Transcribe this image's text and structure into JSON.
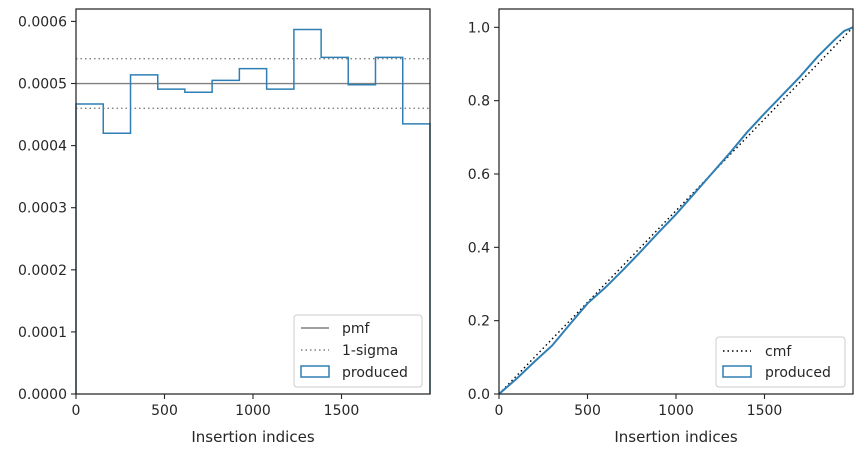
{
  "colors": {
    "step": "#2f7fb4",
    "pmf": "#808080",
    "sigma": "#808080",
    "cmf": "#000000",
    "axes": "#262626"
  },
  "chart_data": [
    {
      "type": "step-histogram",
      "xlabel": "Insertion indices",
      "ylabel": "",
      "xlim": [
        0,
        2000
      ],
      "ylim": [
        0,
        0.00062
      ],
      "xticks": [
        0,
        500,
        1000,
        1500
      ],
      "xtick_labels": [
        "0",
        "500",
        "1000",
        "1500"
      ],
      "yticks": [
        0,
        0.0001,
        0.0002,
        0.0003,
        0.0004,
        0.0005,
        0.0006
      ],
      "ytick_labels": [
        "0.0000",
        "0.0001",
        "0.0002",
        "0.0003",
        "0.0004",
        "0.0005",
        "0.0006"
      ],
      "bin_edges": [
        0,
        154,
        308,
        462,
        615,
        769,
        923,
        1077,
        1231,
        1385,
        1538,
        1692,
        1846,
        2000
      ],
      "series": [
        {
          "name": "produced",
          "values": [
            0.000467,
            0.00042,
            0.000514,
            0.000491,
            0.000486,
            0.000505,
            0.000524,
            0.000491,
            0.000587,
            0.000542,
            0.000498,
            0.000542,
            0.000435
          ]
        }
      ],
      "reference_lines": [
        {
          "name": "pmf",
          "y": 0.0005,
          "style": "solid"
        },
        {
          "name": "1-sigma",
          "y": 0.00054,
          "style": "dotted"
        },
        {
          "name": "",
          "y": 0.00046,
          "style": "dotted"
        }
      ],
      "legend": {
        "position": "lower-right",
        "entries": [
          {
            "label": "pmf",
            "kind": "line-solid"
          },
          {
            "label": "1-sigma",
            "kind": "line-dotted"
          },
          {
            "label": "produced",
            "kind": "patch"
          }
        ]
      }
    },
    {
      "type": "line",
      "xlabel": "Insertion indices",
      "ylabel": "",
      "xlim": [
        0,
        2000
      ],
      "ylim": [
        0,
        1.05
      ],
      "xticks": [
        0,
        500,
        1000,
        1500
      ],
      "xtick_labels": [
        "0",
        "500",
        "1000",
        "1500"
      ],
      "yticks": [
        0,
        0.2,
        0.4,
        0.6,
        0.8,
        1.0
      ],
      "ytick_labels": [
        "0.0",
        "0.2",
        "0.4",
        "0.6",
        "0.8",
        "1.0"
      ],
      "series": [
        {
          "name": "cmf",
          "style": "dotted",
          "x": [
            0,
            2000
          ],
          "y": [
            0,
            1.0
          ]
        },
        {
          "name": "produced",
          "style": "solid",
          "x": [
            0,
            100,
            200,
            300,
            400,
            500,
            600,
            700,
            800,
            900,
            1000,
            1100,
            1200,
            1300,
            1400,
            1500,
            1600,
            1700,
            1800,
            1900,
            1950,
            2000
          ],
          "y": [
            0,
            0.042,
            0.088,
            0.132,
            0.19,
            0.247,
            0.29,
            0.338,
            0.388,
            0.44,
            0.49,
            0.545,
            0.6,
            0.655,
            0.713,
            0.765,
            0.815,
            0.865,
            0.92,
            0.968,
            0.99,
            1.0
          ]
        }
      ],
      "legend": {
        "position": "lower-right",
        "entries": [
          {
            "label": "cmf",
            "kind": "line-dotted"
          },
          {
            "label": "produced",
            "kind": "patch"
          }
        ]
      }
    }
  ]
}
